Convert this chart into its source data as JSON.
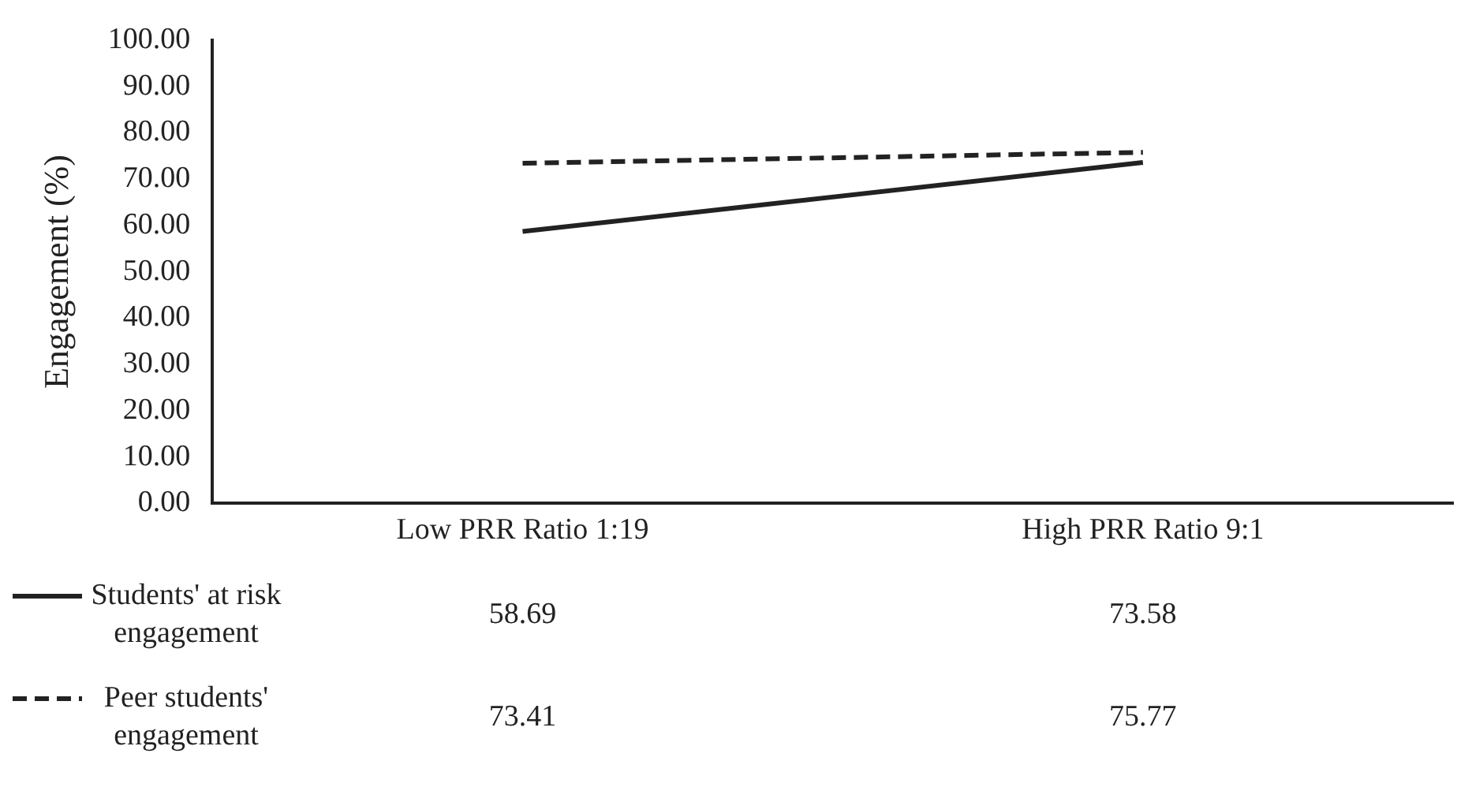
{
  "chart_data": {
    "type": "line",
    "ylabel": "Engagement (%)",
    "categories": [
      "Low PRR Ratio 1:19",
      "High PRR Ratio 9:1"
    ],
    "series": [
      {
        "name": "Students' at risk engagement",
        "color": "#222222",
        "line_style": "solid",
        "values": [
          58.69,
          73.58
        ]
      },
      {
        "name": "Peer students' engagement",
        "color": "#222222",
        "line_style": "dashed",
        "values": [
          73.41,
          75.77
        ]
      }
    ],
    "ylim": [
      0,
      100
    ],
    "yticks": [
      {
        "value": 0,
        "label": "0.00"
      },
      {
        "value": 10,
        "label": "10.00"
      },
      {
        "value": 20,
        "label": "20.00"
      },
      {
        "value": 30,
        "label": "30.00"
      },
      {
        "value": 40,
        "label": "40.00"
      },
      {
        "value": 50,
        "label": "50.00"
      },
      {
        "value": 60,
        "label": "60.00"
      },
      {
        "value": 70,
        "label": "70.00"
      },
      {
        "value": 80,
        "label": "80.00"
      },
      {
        "value": 90,
        "label": "90.00"
      },
      {
        "value": 100,
        "label": "100.00"
      }
    ],
    "grid": false,
    "legend": "bottom",
    "marker": "none",
    "data_labels": true
  }
}
